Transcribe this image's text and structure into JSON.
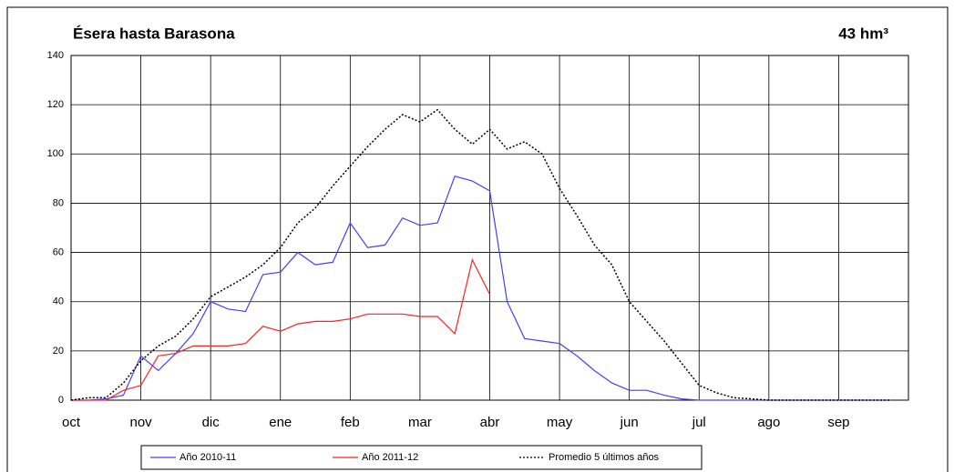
{
  "chart_data": {
    "type": "line",
    "title": "Ésera hasta Barasona",
    "subtitle": "43 hm³",
    "categories": [
      "oct",
      null,
      null,
      null,
      "nov",
      null,
      null,
      null,
      "dic",
      null,
      null,
      null,
      "ene",
      null,
      null,
      null,
      "feb",
      null,
      null,
      null,
      "mar",
      null,
      null,
      null,
      "abr",
      null,
      null,
      null,
      "may",
      null,
      null,
      null,
      "jun",
      null,
      null,
      null,
      "jul",
      null,
      null,
      null,
      "ago",
      null,
      null,
      null,
      "sep",
      null,
      null,
      null
    ],
    "series": [
      {
        "name": "Año 2010-11",
        "color": "#4040ff",
        "dash": false,
        "values": [
          0,
          0,
          0.5,
          2,
          18,
          12,
          19,
          27,
          40,
          37,
          36,
          51,
          52,
          60,
          55,
          56,
          72,
          62,
          63,
          74,
          71,
          72,
          91,
          89,
          85,
          40,
          25,
          24,
          23,
          18,
          12,
          7,
          4,
          4,
          2,
          0.5,
          0,
          0,
          0,
          0,
          0,
          0,
          0,
          0,
          0,
          0,
          0,
          0
        ]
      },
      {
        "name": "Año 2011-12",
        "color": "#ff2020",
        "dash": false,
        "values": [
          0,
          0,
          0,
          4,
          6,
          18,
          19,
          22,
          22,
          22,
          23,
          30,
          28,
          31,
          32,
          32,
          33,
          35,
          35,
          35,
          34,
          34,
          27,
          57,
          43,
          null,
          null,
          null,
          null,
          null,
          null,
          null,
          null,
          null,
          null,
          null,
          null,
          null,
          null,
          null,
          null,
          null,
          null,
          null,
          null,
          null,
          null,
          null
        ]
      },
      {
        "name": "Promedio 5 últimos años",
        "color": "#000000",
        "dash": true,
        "values": [
          0,
          1,
          1,
          7,
          16,
          22,
          26,
          33,
          42,
          46,
          50,
          55,
          62,
          72,
          78,
          87,
          95,
          103,
          110,
          116,
          113,
          118,
          110,
          104,
          110,
          102,
          105,
          100,
          86,
          75,
          63,
          55,
          40,
          32,
          24,
          15,
          6,
          3,
          1,
          0.5,
          0,
          0,
          0,
          0,
          0,
          0,
          0,
          0
        ]
      }
    ],
    "ylim": [
      0,
      140
    ],
    "yticks": [
      0,
      20,
      40,
      60,
      80,
      100,
      120,
      140
    ],
    "grid": true,
    "legend": "bottom"
  }
}
